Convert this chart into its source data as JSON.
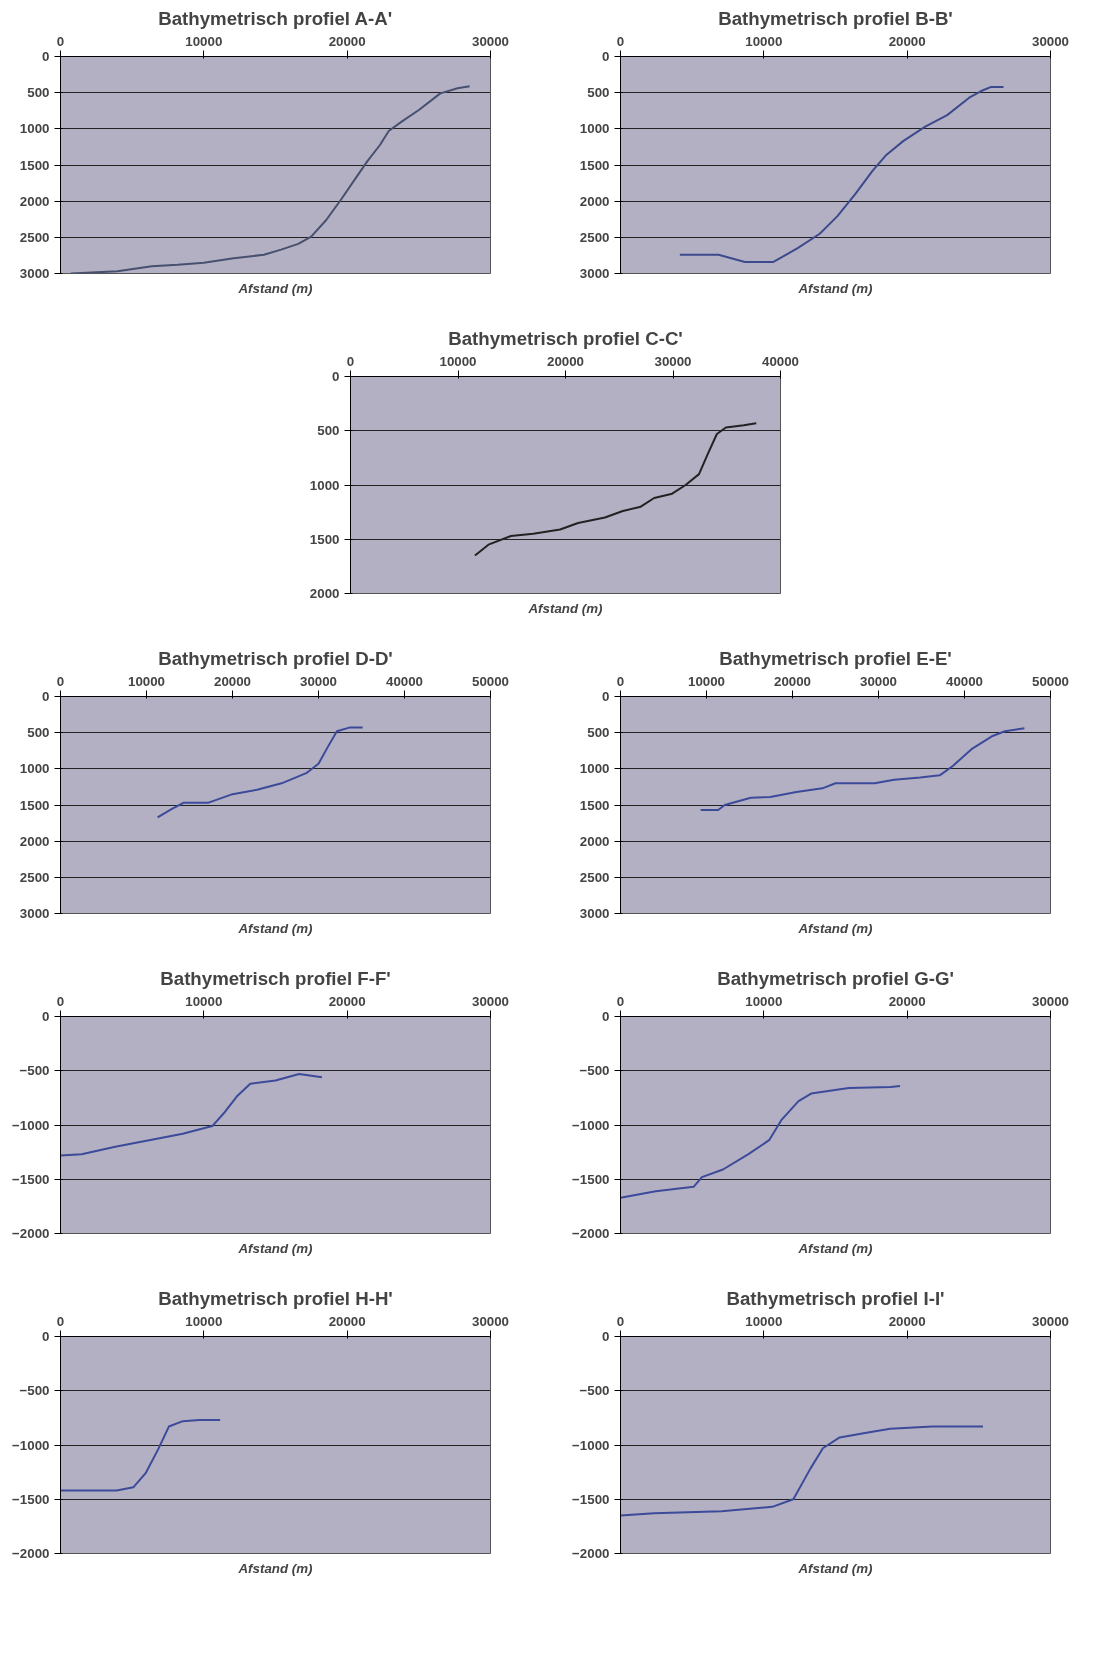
{
  "chart_data": [
    {
      "type": "line",
      "title": "Bathymetrisch profiel A-A'",
      "xlabel": "Afstand (m)",
      "color": "#47506e",
      "grid": "y",
      "xlim": [
        0,
        30000
      ],
      "xticks": [
        0,
        10000,
        20000,
        30000
      ],
      "ylim": [
        3000,
        0
      ],
      "yticks": [
        0,
        500,
        1000,
        1500,
        2000,
        2500,
        3000
      ],
      "x": [
        720,
        3970,
        6370,
        8180,
        10000,
        12080,
        14190,
        15390,
        16590,
        17490,
        18540,
        19600,
        20500,
        21400,
        22300,
        22900,
        23800,
        25000,
        26500,
        27700,
        28550
      ],
      "values": [
        3000,
        2970,
        2900,
        2880,
        2850,
        2790,
        2740,
        2670,
        2590,
        2490,
        2260,
        1970,
        1710,
        1450,
        1220,
        1030,
        900,
        740,
        510,
        440,
        410
      ]
    },
    {
      "type": "line",
      "title": "Bathymetrisch profiel B-B'",
      "xlabel": "Afstand (m)",
      "color": "#3c4a8c",
      "grid": "y",
      "xlim": [
        0,
        30000
      ],
      "xticks": [
        0,
        10000,
        20000,
        30000
      ],
      "ylim": [
        3000,
        0
      ],
      "yticks": [
        0,
        500,
        1000,
        1500,
        2000,
        2500,
        3000
      ],
      "x": [
        4140,
        6840,
        8680,
        10670,
        12360,
        13900,
        15120,
        16350,
        17580,
        18500,
        19720,
        21260,
        22790,
        24330,
        25250,
        25860,
        26720
      ],
      "values": [
        2740,
        2740,
        2840,
        2840,
        2650,
        2450,
        2210,
        1910,
        1580,
        1370,
        1170,
        970,
        810,
        570,
        470,
        420,
        420
      ]
    },
    {
      "type": "line",
      "title": "Bathymetrisch profiel C-C'",
      "xlabel": "Afstand (m)",
      "color": "#222222",
      "grid": "y",
      "xlim": [
        0,
        40000
      ],
      "xticks": [
        0,
        10000,
        20000,
        30000,
        40000
      ],
      "ylim": [
        2000,
        0
      ],
      "yticks": [
        0,
        500,
        1000,
        1500,
        2000
      ],
      "x": [
        11580,
        12830,
        14920,
        17000,
        19500,
        21170,
        23670,
        25330,
        27000,
        28250,
        29920,
        31170,
        32420,
        33250,
        34080,
        34920,
        36580,
        37750
      ],
      "values": [
        1650,
        1550,
        1470,
        1450,
        1410,
        1350,
        1300,
        1240,
        1200,
        1120,
        1080,
        1000,
        900,
        710,
        530,
        470,
        450,
        430
      ]
    },
    {
      "type": "line",
      "title": "Bathymetrisch profiel D-D'",
      "xlabel": "Afstand (m)",
      "color": "#3c4a9a",
      "grid": "y",
      "xlim": [
        0,
        50000
      ],
      "xticks": [
        0,
        10000,
        20000,
        30000,
        40000,
        50000
      ],
      "ylim": [
        3000,
        0
      ],
      "yticks": [
        0,
        500,
        1000,
        1500,
        2000,
        2500,
        3000
      ],
      "x": [
        11290,
        12860,
        14290,
        17140,
        20000,
        22860,
        25710,
        28570,
        30000,
        31070,
        32140,
        33570,
        35140
      ],
      "values": [
        1670,
        1560,
        1470,
        1470,
        1350,
        1290,
        1200,
        1060,
        930,
        700,
        480,
        430,
        430
      ]
    },
    {
      "type": "line",
      "title": "Bathymetrisch profiel E-E'",
      "xlabel": "Afstand (m)",
      "color": "#3c4a9a",
      "grid": "y",
      "xlim": [
        0,
        50000
      ],
      "xticks": [
        0,
        10000,
        20000,
        30000,
        40000,
        50000
      ],
      "ylim": [
        3000,
        0
      ],
      "yticks": [
        0,
        500,
        1000,
        1500,
        2000,
        2500,
        3000
      ],
      "x": [
        9320,
        11360,
        12120,
        15150,
        17420,
        20450,
        23480,
        25000,
        29550,
        31820,
        34850,
        37120,
        38640,
        40910,
        43180,
        44700,
        46970
      ],
      "values": [
        1570,
        1570,
        1500,
        1400,
        1390,
        1320,
        1270,
        1200,
        1200,
        1150,
        1120,
        1090,
        960,
        720,
        550,
        480,
        440
      ]
    },
    {
      "type": "line",
      "title": "Bathymetrisch profiel F-F'",
      "xlabel": "Afstand (m)",
      "color": "#3c4a9a",
      "grid": "y",
      "xlim": [
        0,
        30000
      ],
      "xticks": [
        0,
        10000,
        20000,
        30000
      ],
      "ylim": [
        -2000,
        0
      ],
      "yticks": [
        0,
        -500,
        -1000,
        -1500,
        -2000
      ],
      "x": [
        0,
        1470,
        3820,
        6180,
        8530,
        10590,
        11470,
        12350,
        13240,
        15000,
        16650,
        18240
      ],
      "values": [
        -1280,
        -1270,
        -1200,
        -1140,
        -1080,
        -1010,
        -880,
        -730,
        -620,
        -590,
        -530,
        -560
      ]
    },
    {
      "type": "line",
      "title": "Bathymetrisch profiel G-G'",
      "xlabel": "Afstand (m)",
      "color": "#3c4a9a",
      "grid": "y",
      "xlim": [
        0,
        30000
      ],
      "xticks": [
        0,
        10000,
        20000,
        30000
      ],
      "ylim": [
        -2000,
        0
      ],
      "yticks": [
        0,
        -500,
        -1000,
        -1500,
        -2000
      ],
      "x": [
        0,
        2460,
        5100,
        5680,
        7150,
        8900,
        10370,
        11250,
        12420,
        13300,
        15930,
        18860,
        19500
      ],
      "values": [
        -1670,
        -1610,
        -1570,
        -1480,
        -1410,
        -1270,
        -1140,
        -950,
        -780,
        -710,
        -660,
        -650,
        -640
      ]
    },
    {
      "type": "line",
      "title": "Bathymetrisch profiel H-H'",
      "xlabel": "Afstand (m)",
      "color": "#3c4a9a",
      "grid": "y",
      "xlim": [
        0,
        30000
      ],
      "xticks": [
        0,
        10000,
        20000,
        30000
      ],
      "ylim": [
        -2000,
        0
      ],
      "yticks": [
        0,
        -500,
        -1000,
        -1500,
        -2000
      ],
      "x": [
        0,
        3920,
        5080,
        5940,
        6810,
        7560,
        8540,
        9690,
        11140
      ],
      "values": [
        -1420,
        -1420,
        -1390,
        -1260,
        -1040,
        -830,
        -780,
        -770,
        -770
      ]
    },
    {
      "type": "line",
      "title": "Bathymetrisch profiel I-I'",
      "xlabel": "Afstand (m)",
      "color": "#3c4a9a",
      "grid": "y",
      "xlim": [
        0,
        30000
      ],
      "xticks": [
        0,
        10000,
        20000,
        30000
      ],
      "ylim": [
        -2000,
        0
      ],
      "yticks": [
        0,
        -500,
        -1000,
        -1500,
        -2000
      ],
      "x": [
        0,
        2350,
        7060,
        10590,
        12060,
        13240,
        14120,
        15290,
        17060,
        18820,
        21760,
        25290
      ],
      "values": [
        -1650,
        -1630,
        -1610,
        -1570,
        -1500,
        -1220,
        -1030,
        -930,
        -890,
        -850,
        -830,
        -830
      ]
    }
  ]
}
